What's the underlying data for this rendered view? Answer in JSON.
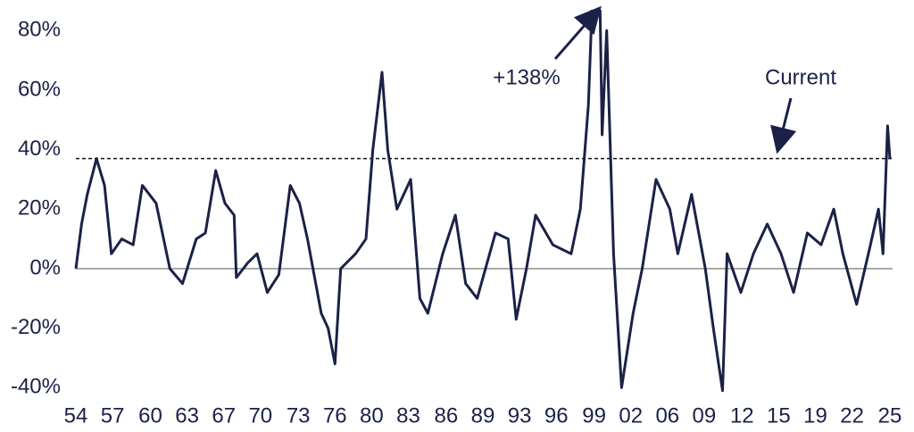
{
  "chart_data": {
    "type": "line",
    "x": [
      1954.0,
      1954.5,
      1955.0,
      1955.8,
      1956.5,
      1957.1,
      1958.0,
      1959.0,
      1959.8,
      1961.0,
      1962.2,
      1963.3,
      1964.5,
      1965.3,
      1966.2,
      1967.0,
      1967.8,
      1968.0,
      1969.0,
      1969.8,
      1970.7,
      1971.7,
      1972.7,
      1973.5,
      1974.2,
      1975.4,
      1976.0,
      1976.6,
      1977.1,
      1978.4,
      1979.3,
      1979.9,
      1980.7,
      1981.2,
      1982.0,
      1983.2,
      1984.0,
      1984.7,
      1986.0,
      1987.1,
      1988.0,
      1989.0,
      1990.6,
      1991.7,
      1992.4,
      1993.3,
      1994.1,
      1995.6,
      1997.2,
      1998.0,
      1998.7,
      1999.5,
      1999.9,
      2000.3,
      2000.9,
      2001.6,
      2002.6,
      2003.4,
      2004.6,
      2005.8,
      2006.5,
      2007.7,
      2008.9,
      2009.6,
      2010.4,
      2010.8,
      2012.0,
      2013.1,
      2014.3,
      2015.5,
      2016.6,
      2017.8,
      2019.0,
      2020.1,
      2020.9,
      2022.1,
      2023.3,
      2024.0,
      2024.4,
      2024.8,
      2025.0
    ],
    "series": [
      {
        "color": "#1b2147",
        "values": [
          0,
          15,
          25,
          37,
          28,
          5,
          10,
          8,
          28,
          22,
          0,
          -5,
          10,
          12,
          33,
          22,
          18,
          -3,
          2,
          5,
          -8,
          -2,
          28,
          22,
          10,
          -15,
          -20,
          -32,
          0,
          5,
          10,
          40,
          66,
          40,
          20,
          30,
          -10,
          -15,
          5,
          18,
          -5,
          -10,
          12,
          10,
          -17,
          0,
          18,
          8,
          5,
          20,
          55,
          138,
          45,
          80,
          5,
          -40,
          -15,
          0,
          30,
          20,
          5,
          25,
          0,
          -20,
          -41,
          5,
          -8,
          5,
          15,
          5,
          -8,
          12,
          8,
          20,
          5,
          -12,
          8,
          20,
          5,
          48,
          37
        ]
      }
    ],
    "reference_line": 37,
    "annotations": [
      "+138%",
      "Current"
    ],
    "xlim": [
      1954,
      2025
    ],
    "xticks": [
      {
        "value": 1954,
        "label": "54"
      },
      {
        "value": 1957.2,
        "label": "57"
      },
      {
        "value": 1960.5,
        "label": "60"
      },
      {
        "value": 1963.7,
        "label": "63"
      },
      {
        "value": 1966.9,
        "label": "67"
      },
      {
        "value": 1970.1,
        "label": "70"
      },
      {
        "value": 1973.4,
        "label": "73"
      },
      {
        "value": 1976.6,
        "label": "76"
      },
      {
        "value": 1979.8,
        "label": "80"
      },
      {
        "value": 1983,
        "label": "83"
      },
      {
        "value": 1986.3,
        "label": "86"
      },
      {
        "value": 1989.5,
        "label": "89"
      },
      {
        "value": 1992.7,
        "label": "93"
      },
      {
        "value": 1995.9,
        "label": "96"
      },
      {
        "value": 1999.2,
        "label": "99"
      },
      {
        "value": 2002.4,
        "label": "02"
      },
      {
        "value": 2005.6,
        "label": "06"
      },
      {
        "value": 2008.8,
        "label": "09"
      },
      {
        "value": 2012.1,
        "label": "12"
      },
      {
        "value": 2015.3,
        "label": "15"
      },
      {
        "value": 2018.5,
        "label": "19"
      },
      {
        "value": 2021.7,
        "label": "22"
      },
      {
        "value": 2025,
        "label": "25"
      }
    ],
    "ylim": [
      -42,
      87
    ],
    "yticks": [
      {
        "value": -40,
        "label": "-40%"
      },
      {
        "value": -20,
        "label": "-20%"
      },
      {
        "value": 0,
        "label": "0%"
      },
      {
        "value": 20,
        "label": "20%"
      },
      {
        "value": 40,
        "label": "40%"
      },
      {
        "value": 60,
        "label": "60%"
      },
      {
        "value": 80,
        "label": "80%"
      }
    ],
    "grid": false
  }
}
